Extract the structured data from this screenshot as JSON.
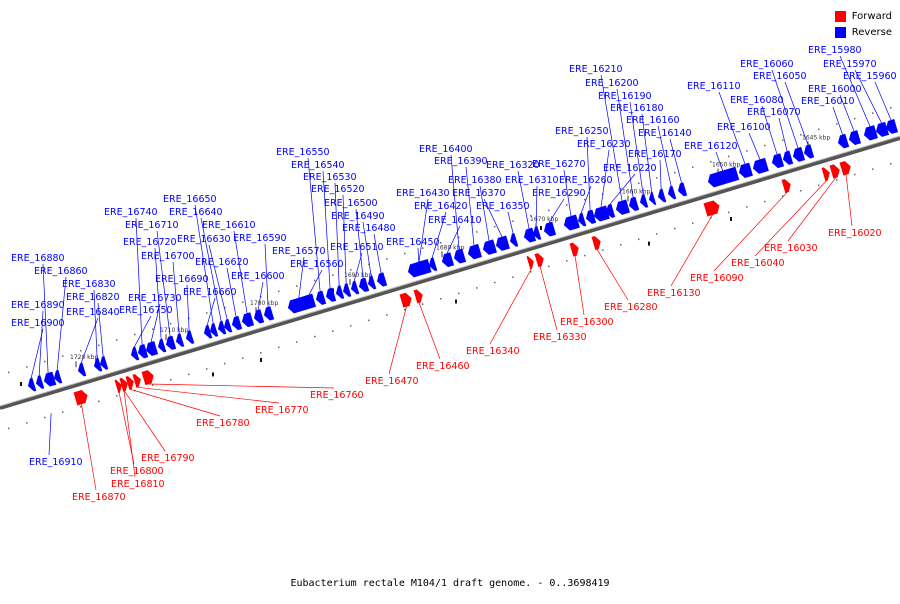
{
  "legend": {
    "forward_label": "Forward",
    "reverse_label": "Reverse",
    "forward_color": "#ff0000",
    "reverse_color": "#0000ff"
  },
  "caption": "Eubacterium rectale M104/1 draft genome. - 0..3698419",
  "ticks": [
    "1720 kbp",
    "1710 kbp",
    "1700 kbp",
    "1690 kbp",
    "1680 kbp",
    "1670 kbp",
    "1660 kbp",
    "1650 kbp",
    "1645 kbp"
  ],
  "reverse_genes": [
    "ERE_15960",
    "ERE_15970",
    "ERE_15980",
    "ERE_16000",
    "ERE_16010",
    "ERE_16050",
    "ERE_16060",
    "ERE_16070",
    "ERE_16080",
    "ERE_16100",
    "ERE_16110",
    "ERE_16120",
    "ERE_16140",
    "ERE_16160",
    "ERE_16170",
    "ERE_16180",
    "ERE_16190",
    "ERE_16200",
    "ERE_16210",
    "ERE_16220",
    "ERE_16230",
    "ERE_16250",
    "ERE_16260",
    "ERE_16270",
    "ERE_16290",
    "ERE_16310",
    "ERE_16320",
    "ERE_16350",
    "ERE_16370",
    "ERE_16380",
    "ERE_16390",
    "ERE_16400",
    "ERE_16410",
    "ERE_16420",
    "ERE_16430",
    "ERE_16450",
    "ERE_16480",
    "ERE_16490",
    "ERE_16500",
    "ERE_16510",
    "ERE_16520",
    "ERE_16530",
    "ERE_16540",
    "ERE_16550",
    "ERE_16560",
    "ERE_16570",
    "ERE_16590",
    "ERE_16600",
    "ERE_16610",
    "ERE_16620",
    "ERE_16630",
    "ERE_16640",
    "ERE_16650",
    "ERE_16660",
    "ERE_16690",
    "ERE_16700",
    "ERE_16710",
    "ERE_16720",
    "ERE_16730",
    "ERE_16740",
    "ERE_16750",
    "ERE_16820",
    "ERE_16830",
    "ERE_16840",
    "ERE_16860",
    "ERE_16880",
    "ERE_16890",
    "ERE_16900",
    "ERE_16910"
  ],
  "forward_genes": [
    "ERE_16020",
    "ERE_16030",
    "ERE_16040",
    "ERE_16090",
    "ERE_16130",
    "ERE_16280",
    "ERE_16300",
    "ERE_16330",
    "ERE_16340",
    "ERE_16460",
    "ERE_16470",
    "ERE_16760",
    "ERE_16770",
    "ERE_16780",
    "ERE_16790",
    "ERE_16800",
    "ERE_16810",
    "ERE_16870"
  ]
}
